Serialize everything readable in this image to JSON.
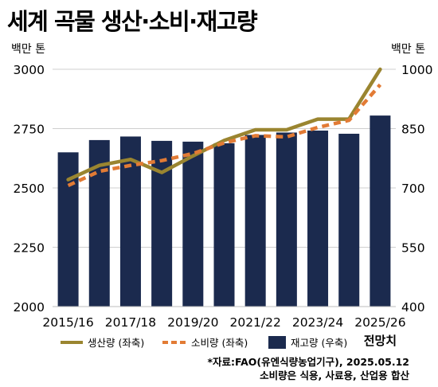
{
  "title": "세계 곡물 생산·소비·재고량",
  "chart_data": {
    "type": "bar",
    "categories": [
      "2015/16",
      "2016/17",
      "2017/18",
      "2018/19",
      "2019/20",
      "2020/21",
      "2021/22",
      "2022/23",
      "2023/24",
      "2024/25",
      "2025/26"
    ],
    "x_tick_labels": [
      "2015/16",
      "2017/18",
      "2019/20",
      "2021/22",
      "2023/24",
      "2025/26"
    ],
    "forecast_label": "전망치",
    "y_left": {
      "unit_label": "백만 톤",
      "range": [
        2000,
        3000
      ],
      "ticks": [
        2000,
        2250,
        2500,
        2750,
        3000
      ]
    },
    "y_right": {
      "unit_label": "백만 톤",
      "range": [
        400,
        1000
      ],
      "ticks": [
        400,
        550,
        700,
        850,
        1000
      ]
    },
    "grid": true,
    "legend_position": "bottom",
    "series": [
      {
        "name": "재고량 (우축)",
        "type": "bar",
        "axis": "right",
        "color": "#1b2a4e",
        "values": [
          790,
          821,
          830,
          819,
          817,
          813,
          834,
          840,
          845,
          837,
          883
        ]
      },
      {
        "name": "생산량 (좌축)",
        "type": "line",
        "axis": "left",
        "color": "#9a8530",
        "values": [
          2535,
          2595,
          2620,
          2565,
          2635,
          2700,
          2745,
          2745,
          2790,
          2790,
          3000
        ]
      },
      {
        "name": "소비량 (좌축)",
        "type": "line",
        "axis": "left",
        "dashed": true,
        "color": "#e27b35",
        "values": [
          2510,
          2570,
          2595,
          2615,
          2645,
          2690,
          2720,
          2715,
          2755,
          2785,
          2935
        ]
      }
    ]
  },
  "source": {
    "line1": "*자료:FAO(유엔식량농업기구), 2025.05.12",
    "line2": "소비량은 식용, 사료용, 산업용 합산"
  }
}
